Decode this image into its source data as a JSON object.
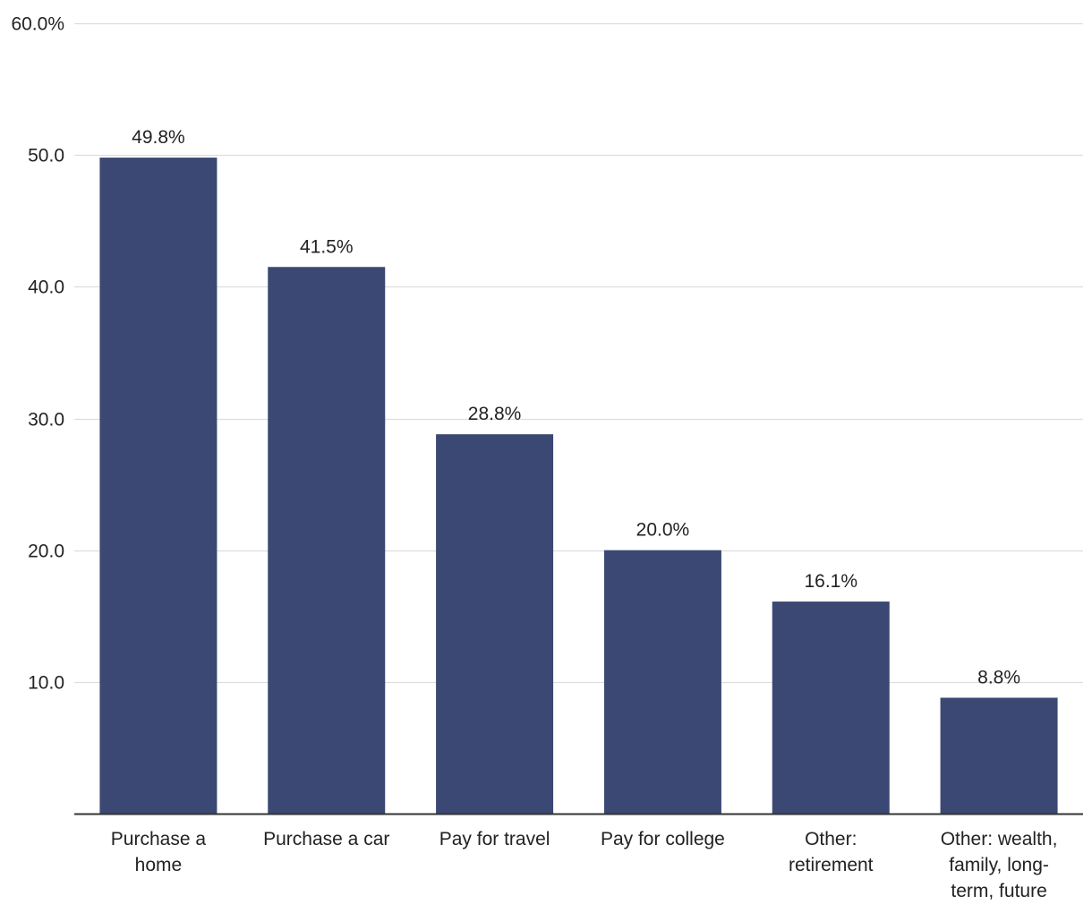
{
  "chart_data": {
    "type": "bar",
    "title": "",
    "xlabel": "",
    "ylabel": "",
    "ylim": [
      0,
      60
    ],
    "grid": true,
    "color": "#3b4873",
    "y_ticks": [
      {
        "value": 10,
        "label": "10.0"
      },
      {
        "value": 20,
        "label": "20.0"
      },
      {
        "value": 30,
        "label": "30.0"
      },
      {
        "value": 40,
        "label": "40.0"
      },
      {
        "value": 50,
        "label": "50.0"
      },
      {
        "value": 60,
        "label": "60.0%"
      }
    ],
    "categories": [
      {
        "lines": [
          "Purchase a",
          "home"
        ]
      },
      {
        "lines": [
          "Purchase a car"
        ]
      },
      {
        "lines": [
          "Pay for travel"
        ]
      },
      {
        "lines": [
          "Pay for college"
        ]
      },
      {
        "lines": [
          "Other:",
          "retirement"
        ]
      },
      {
        "lines": [
          "Other: wealth,",
          "family, long-",
          "term, future"
        ]
      }
    ],
    "values": [
      49.8,
      41.5,
      28.8,
      20.0,
      16.1,
      8.8
    ],
    "value_labels": [
      "49.8%",
      "41.5%",
      "28.8%",
      "20.0%",
      "16.1%",
      "8.8%"
    ]
  }
}
